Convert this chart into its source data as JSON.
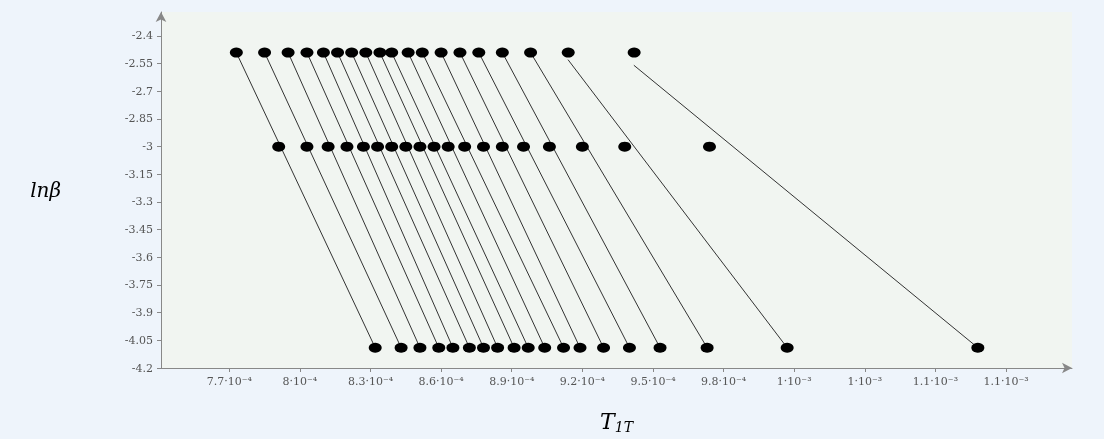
{
  "chart_data": {
    "type": "scatter",
    "xlabel": "T$_{1T}$",
    "ylabel": "lnβ",
    "marker": "circle",
    "grid": false,
    "xlim": [
      0.000741,
      0.001128
    ],
    "ylim": [
      -4.2,
      -2.27
    ],
    "xticks": [
      {
        "value": 0.00077,
        "label": "7.7·10⁻⁴"
      },
      {
        "value": 0.0008,
        "label": "8·10⁻⁴"
      },
      {
        "value": 0.00083,
        "label": "8.3·10⁻⁴"
      },
      {
        "value": 0.00086,
        "label": "8.6·10⁻⁴"
      },
      {
        "value": 0.00089,
        "label": "8.9·10⁻⁴"
      },
      {
        "value": 0.00092,
        "label": "9.2·10⁻⁴"
      },
      {
        "value": 0.00095,
        "label": "9.5·10⁻⁴"
      },
      {
        "value": 0.00098,
        "label": "9.8·10⁻⁴"
      },
      {
        "value": 0.00101,
        "label": "1·10⁻³"
      },
      {
        "value": 0.00104,
        "label": "1·10⁻³"
      },
      {
        "value": 0.00107,
        "label": "1.1·10⁻³"
      },
      {
        "value": 0.0011,
        "label": "1.1·10⁻³"
      }
    ],
    "yticks": [
      -2.4,
      -2.55,
      -2.7,
      -2.85,
      -3,
      -3.15,
      -3.3,
      -3.45,
      -3.6,
      -3.75,
      -3.9,
      -4.05,
      -4.2
    ],
    "series": [
      {
        "color": "#000000",
        "x": [
          0.000773,
          0.000785,
          0.000795,
          0.000803,
          0.00081,
          0.000816,
          0.000822,
          0.000828,
          0.000834,
          0.000839,
          0.000846,
          0.000852,
          0.00086,
          0.000868,
          0.000876,
          0.000886,
          0.000898,
          0.000914,
          0.000942
        ],
        "values": [
          -2.49,
          -2.49,
          -2.49,
          -2.49,
          -2.49,
          -2.49,
          -2.49,
          -2.49,
          -2.49,
          -2.49,
          -2.49,
          -2.49,
          -2.49,
          -2.49,
          -2.49,
          -2.49,
          -2.49,
          -2.49,
          -2.49
        ]
      },
      {
        "color": "#000000",
        "x": [
          0.000791,
          0.000803,
          0.000812,
          0.00082,
          0.000827,
          0.000833,
          0.000839,
          0.000845,
          0.000851,
          0.000857,
          0.000863,
          0.00087,
          0.000878,
          0.000886,
          0.000895,
          0.000906,
          0.00092,
          0.000938,
          0.000974
        ],
        "values": [
          -3,
          -3,
          -3,
          -3,
          -3,
          -3,
          -3,
          -3,
          -3,
          -3,
          -3,
          -3,
          -3,
          -3,
          -3,
          -3,
          -3,
          -3,
          -3
        ]
      },
      {
        "color": "#000000",
        "x": [
          0.000832,
          0.000843,
          0.000851,
          0.000859,
          0.000865,
          0.000872,
          0.000878,
          0.000884,
          0.000891,
          0.000897,
          0.000904,
          0.000912,
          0.000919,
          0.000929,
          0.00094,
          0.000953,
          0.000973,
          0.001007,
          0.001088
        ],
        "values": [
          -4.09,
          -4.09,
          -4.09,
          -4.09,
          -4.09,
          -4.09,
          -4.09,
          -4.09,
          -4.09,
          -4.09,
          -4.09,
          -4.09,
          -4.09,
          -4.09,
          -4.09,
          -4.09,
          -4.09,
          -4.09,
          -4.09
        ]
      },
      {
        "type": "line",
        "marker": "none",
        "color": "#333333",
        "x": [
          0.000773,
          0.000832
        ],
        "values": [
          -2.49,
          -4.09
        ]
      },
      {
        "type": "line",
        "marker": "none",
        "color": "#333333",
        "x": [
          0.000785,
          0.000843
        ],
        "values": [
          -2.49,
          -4.09
        ]
      },
      {
        "type": "line",
        "marker": "none",
        "color": "#333333",
        "x": [
          0.000795,
          0.000851
        ],
        "values": [
          -2.49,
          -4.09
        ]
      },
      {
        "type": "line",
        "marker": "none",
        "color": "#333333",
        "x": [
          0.000803,
          0.000859
        ],
        "values": [
          -2.49,
          -4.09
        ]
      },
      {
        "type": "line",
        "marker": "none",
        "color": "#333333",
        "x": [
          0.00081,
          0.000865
        ],
        "values": [
          -2.49,
          -4.09
        ]
      },
      {
        "type": "line",
        "marker": "none",
        "color": "#333333",
        "x": [
          0.000816,
          0.000872
        ],
        "values": [
          -2.49,
          -4.09
        ]
      },
      {
        "type": "line",
        "marker": "none",
        "color": "#333333",
        "x": [
          0.000822,
          0.000878
        ],
        "values": [
          -2.49,
          -4.09
        ]
      },
      {
        "type": "line",
        "marker": "none",
        "color": "#333333",
        "x": [
          0.000828,
          0.000884
        ],
        "values": [
          -2.49,
          -4.09
        ]
      },
      {
        "type": "line",
        "marker": "none",
        "color": "#333333",
        "x": [
          0.000834,
          0.000891
        ],
        "values": [
          -2.49,
          -4.09
        ]
      },
      {
        "type": "line",
        "marker": "none",
        "color": "#333333",
        "x": [
          0.000839,
          0.000897
        ],
        "values": [
          -2.49,
          -4.09
        ]
      },
      {
        "type": "line",
        "marker": "none",
        "color": "#333333",
        "x": [
          0.000846,
          0.000904
        ],
        "values": [
          -2.49,
          -4.09
        ]
      },
      {
        "type": "line",
        "marker": "none",
        "color": "#333333",
        "x": [
          0.000852,
          0.000912
        ],
        "values": [
          -2.49,
          -4.09
        ]
      },
      {
        "type": "line",
        "marker": "none",
        "color": "#333333",
        "x": [
          0.00086,
          0.000919
        ],
        "values": [
          -2.49,
          -4.09
        ]
      },
      {
        "type": "line",
        "marker": "none",
        "color": "#333333",
        "x": [
          0.000868,
          0.000929
        ],
        "values": [
          -2.49,
          -4.09
        ]
      },
      {
        "type": "line",
        "marker": "none",
        "color": "#333333",
        "x": [
          0.000876,
          0.00094
        ],
        "values": [
          -2.49,
          -4.09
        ]
      },
      {
        "type": "line",
        "marker": "none",
        "color": "#333333",
        "x": [
          0.000886,
          0.000953
        ],
        "values": [
          -2.49,
          -4.09
        ]
      },
      {
        "type": "line",
        "marker": "none",
        "color": "#333333",
        "x": [
          0.000898,
          0.000973
        ],
        "values": [
          -2.49,
          -4.09
        ]
      },
      {
        "type": "line",
        "marker": "none",
        "color": "#333333",
        "x": [
          0.000914,
          0.001007
        ],
        "values": [
          -2.53,
          -4.09
        ]
      },
      {
        "type": "line",
        "marker": "none",
        "color": "#333333",
        "x": [
          0.000942,
          0.001088
        ],
        "values": [
          -2.56,
          -4.09
        ]
      }
    ]
  }
}
